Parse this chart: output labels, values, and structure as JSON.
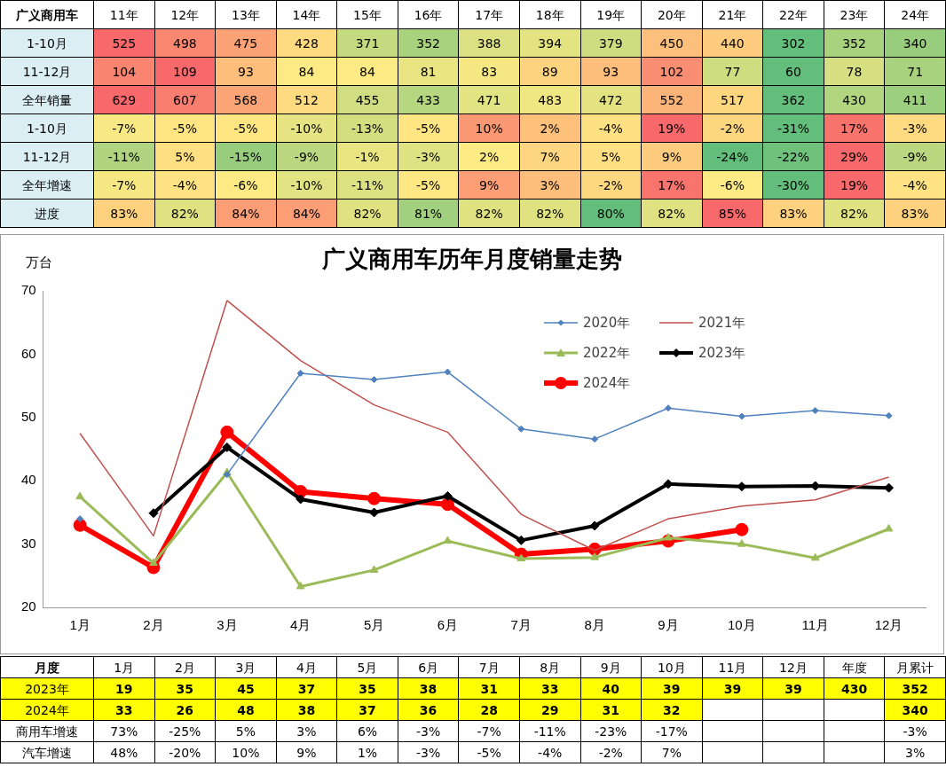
{
  "chart_data": [
    {
      "type": "heatmap",
      "ylabel": "广义商用车",
      "categories": [
        "11年",
        "12年",
        "13年",
        "14年",
        "15年",
        "16年",
        "17年",
        "18年",
        "19年",
        "20年",
        "21年",
        "22年",
        "23年",
        "24年"
      ],
      "y_categories": [
        "1-10月",
        "11-12月",
        "全年销量",
        "1-10月",
        "11-12月",
        "全年增速",
        "进度"
      ],
      "cells": [
        [
          525,
          498,
          475,
          428,
          371,
          352,
          388,
          394,
          379,
          450,
          440,
          302,
          352,
          340
        ],
        [
          104,
          109,
          93,
          84,
          84,
          81,
          83,
          89,
          93,
          102,
          77,
          60,
          78,
          71
        ],
        [
          629,
          607,
          568,
          512,
          455,
          433,
          471,
          483,
          472,
          552,
          517,
          362,
          430,
          411
        ],
        [
          -7,
          -5,
          -5,
          -10,
          -13,
          -5,
          10,
          2,
          -4,
          19,
          -2,
          -31,
          17,
          -3
        ],
        [
          -11,
          5,
          -15,
          -9,
          -1,
          -3,
          2,
          7,
          5,
          9,
          -24,
          -22,
          29,
          -9
        ],
        [
          -7,
          -4,
          -6,
          -10,
          -11,
          -5,
          9,
          3,
          -2,
          17,
          -6,
          -30,
          19,
          -4
        ],
        [
          83,
          82,
          84,
          84,
          82,
          81,
          82,
          82,
          80,
          82,
          85,
          83,
          82,
          83
        ]
      ],
      "cell_labels": [
        [
          "525",
          "498",
          "475",
          "428",
          "371",
          "352",
          "388",
          "394",
          "379",
          "450",
          "440",
          "302",
          "352",
          "340"
        ],
        [
          "104",
          "109",
          "93",
          "84",
          "84",
          "81",
          "83",
          "89",
          "93",
          "102",
          "77",
          "60",
          "78",
          "71"
        ],
        [
          "629",
          "607",
          "568",
          "512",
          "455",
          "433",
          "471",
          "483",
          "472",
          "552",
          "517",
          "362",
          "430",
          "411"
        ],
        [
          "-7%",
          "-5%",
          "-5%",
          "-10%",
          "-13%",
          "-5%",
          "10%",
          "2%",
          "-4%",
          "19%",
          "-2%",
          "-31%",
          "17%",
          "-3%"
        ],
        [
          "-11%",
          "5%",
          "-15%",
          "-9%",
          "-1%",
          "-3%",
          "2%",
          "7%",
          "5%",
          "9%",
          "-24%",
          "-22%",
          "29%",
          "-9%"
        ],
        [
          "-7%",
          "-4%",
          "-6%",
          "-10%",
          "-11%",
          "-5%",
          "9%",
          "3%",
          "-2%",
          "17%",
          "-6%",
          "-30%",
          "19%",
          "-4%"
        ],
        [
          "83%",
          "82%",
          "84%",
          "84%",
          "82%",
          "81%",
          "82%",
          "82%",
          "80%",
          "82%",
          "85%",
          "83%",
          "82%",
          "83%"
        ]
      ]
    },
    {
      "type": "line",
      "title": "广义商用车历年月度销量走势",
      "ylabel": "万台",
      "categories": [
        "1月",
        "2月",
        "3月",
        "4月",
        "5月",
        "6月",
        "7月",
        "8月",
        "9月",
        "10月",
        "11月",
        "12月"
      ],
      "ylim": [
        20,
        70
      ],
      "yticks": [
        20,
        30,
        40,
        50,
        60,
        70
      ],
      "grid": false,
      "legend": "top right",
      "series": [
        {
          "name": "2020年",
          "color": "#4f81bd",
          "marker": "diamond",
          "values": [
            34,
            null,
            41,
            57,
            56,
            57.2,
            48.2,
            46.6,
            51.5,
            50.2,
            51.1,
            50.3
          ]
        },
        {
          "name": "2021年",
          "color": "#c0504d",
          "marker": "none",
          "values": [
            47.5,
            31.3,
            68.5,
            59,
            52,
            47.7,
            34.7,
            29,
            34,
            36,
            37,
            40.6
          ]
        },
        {
          "name": "2022年",
          "color": "#9bbb59",
          "marker": "triangle",
          "values": [
            37.5,
            27,
            41.3,
            23.3,
            25.9,
            30.5,
            27.7,
            27.9,
            31,
            30,
            27.8,
            32.4
          ]
        },
        {
          "name": "2023年",
          "color": "#000000",
          "marker": "diamond",
          "values": [
            null,
            34.9,
            45.3,
            37.1,
            35,
            37.6,
            30.6,
            32.9,
            39.5,
            39.1,
            39.2,
            38.9
          ]
        },
        {
          "name": "2024年",
          "color": "#ff0000",
          "marker": "circle",
          "values": [
            33,
            26.3,
            47.7,
            38.3,
            37.2,
            36.3,
            28.4,
            29.2,
            30.5,
            32.3,
            null,
            null
          ]
        }
      ]
    },
    {
      "type": "heatmap",
      "ylabel": "月度",
      "categories": [
        "1月",
        "2月",
        "3月",
        "4月",
        "5月",
        "6月",
        "7月",
        "8月",
        "9月",
        "10月",
        "11月",
        "12月",
        "年度",
        "月累计"
      ],
      "y_categories": [
        "2023年",
        "2024年",
        "商用车增速",
        "汽车增速"
      ],
      "cells": [
        [
          19,
          35,
          45,
          37,
          35,
          38,
          31,
          33,
          40,
          39,
          39,
          39,
          430,
          352
        ],
        [
          33,
          26,
          48,
          38,
          37,
          36,
          28,
          29,
          31,
          32,
          null,
          null,
          null,
          340
        ],
        [
          73,
          -25,
          5,
          3,
          6,
          -3,
          -7,
          -11,
          -23,
          -17,
          null,
          null,
          null,
          -3
        ],
        [
          48,
          -20,
          10,
          9,
          1,
          -3,
          -5,
          -4,
          -2,
          7,
          null,
          null,
          null,
          3
        ]
      ],
      "cell_labels": [
        [
          "19",
          "35",
          "45",
          "37",
          "35",
          "38",
          "31",
          "33",
          "40",
          "39",
          "39",
          "39",
          "430",
          "352"
        ],
        [
          "33",
          "26",
          "48",
          "38",
          "37",
          "36",
          "28",
          "29",
          "31",
          "32",
          null,
          null,
          null,
          "340"
        ],
        [
          "73%",
          "-25%",
          "5%",
          "3%",
          "6%",
          "-3%",
          "-7%",
          "-11%",
          "-23%",
          "-17%",
          null,
          null,
          null,
          "-3%"
        ],
        [
          "48%",
          "-20%",
          "10%",
          "9%",
          "1%",
          "-3%",
          "-5%",
          "-4%",
          "-2%",
          "7%",
          null,
          null,
          null,
          "3%"
        ]
      ]
    }
  ]
}
